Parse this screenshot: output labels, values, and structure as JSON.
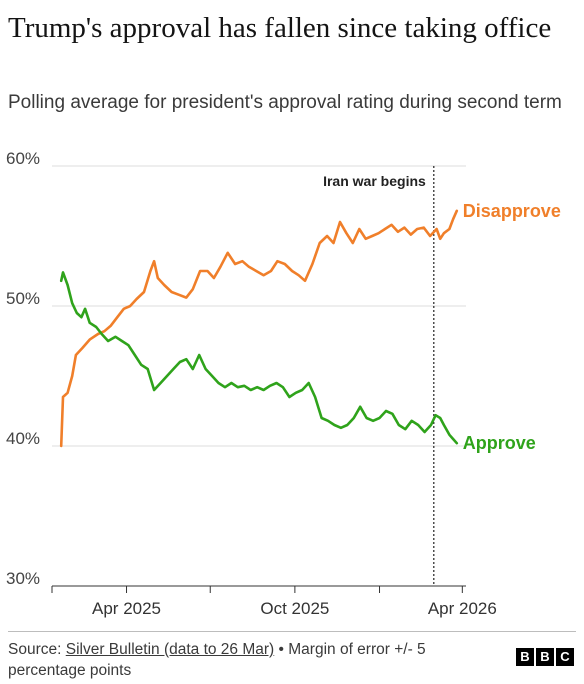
{
  "title": "Trump's approval has fallen since taking office",
  "subtitle": "Polling average for president's approval rating during second term",
  "footer": {
    "source_prefix": "Source: ",
    "source_link": "Silver Bulletin (data to 26 Mar)",
    "source_suffix": " • Margin of error +/- 5 percentage points",
    "logo_letters": [
      "B",
      "B",
      "C"
    ]
  },
  "colors": {
    "disapprove": "#f07f2a",
    "approve": "#2fa31b",
    "grid": "#dcdcdc",
    "axis": "#333333"
  },
  "chart_data": {
    "type": "line",
    "ylim": [
      30,
      60
    ],
    "y_ticks": [
      30,
      40,
      50,
      60
    ],
    "y_tick_labels": [
      "30%",
      "40%",
      "50%",
      "60%"
    ],
    "x_ticks": [
      "2025-04-01",
      "2025-10-01",
      "2026-04-01"
    ],
    "x_tick_labels": [
      "Apr 2025",
      "Oct 2025",
      "Apr 2026"
    ],
    "xlim": [
      "2025-01-10",
      "2026-04-05"
    ],
    "grid": true,
    "annotations": [
      {
        "date": "2026-03-01",
        "label": "Iran war begins"
      }
    ],
    "series": [
      {
        "name": "Disapprove",
        "color": "#f07f2a",
        "points": [
          [
            "2025-01-20",
            40
          ],
          [
            "2025-01-22",
            43.5
          ],
          [
            "2025-01-27",
            43.8
          ],
          [
            "2025-02-01",
            45
          ],
          [
            "2025-02-05",
            46.5
          ],
          [
            "2025-02-12",
            47
          ],
          [
            "2025-02-20",
            47.6
          ],
          [
            "2025-03-01",
            48
          ],
          [
            "2025-03-08",
            48.2
          ],
          [
            "2025-03-15",
            48.6
          ],
          [
            "2025-03-22",
            49.2
          ],
          [
            "2025-03-29",
            49.8
          ],
          [
            "2025-04-05",
            50
          ],
          [
            "2025-04-12",
            50.5
          ],
          [
            "2025-04-20",
            51
          ],
          [
            "2025-04-27",
            52.5
          ],
          [
            "2025-05-01",
            53.2
          ],
          [
            "2025-05-05",
            52
          ],
          [
            "2025-05-12",
            51.5
          ],
          [
            "2025-05-20",
            51
          ],
          [
            "2025-05-28",
            50.8
          ],
          [
            "2025-06-05",
            50.6
          ],
          [
            "2025-06-12",
            51.2
          ],
          [
            "2025-06-20",
            52.5
          ],
          [
            "2025-06-28",
            52.5
          ],
          [
            "2025-07-05",
            52
          ],
          [
            "2025-07-12",
            52.8
          ],
          [
            "2025-07-20",
            53.8
          ],
          [
            "2025-07-28",
            53
          ],
          [
            "2025-08-05",
            53.2
          ],
          [
            "2025-08-12",
            52.8
          ],
          [
            "2025-08-20",
            52.5
          ],
          [
            "2025-08-28",
            52.2
          ],
          [
            "2025-09-05",
            52.5
          ],
          [
            "2025-09-12",
            53.2
          ],
          [
            "2025-09-20",
            53
          ],
          [
            "2025-09-28",
            52.5
          ],
          [
            "2025-10-05",
            52.2
          ],
          [
            "2025-10-12",
            51.8
          ],
          [
            "2025-10-20",
            53
          ],
          [
            "2025-10-28",
            54.5
          ],
          [
            "2025-11-05",
            55
          ],
          [
            "2025-11-12",
            54.5
          ],
          [
            "2025-11-19",
            56
          ],
          [
            "2025-11-26",
            55.2
          ],
          [
            "2025-12-03",
            54.5
          ],
          [
            "2025-12-10",
            55.5
          ],
          [
            "2025-12-17",
            54.8
          ],
          [
            "2025-12-24",
            55
          ],
          [
            "2025-12-31",
            55.2
          ],
          [
            "2026-01-07",
            55.5
          ],
          [
            "2026-01-14",
            55.8
          ],
          [
            "2026-01-21",
            55.3
          ],
          [
            "2026-01-28",
            55.6
          ],
          [
            "2026-02-04",
            55.1
          ],
          [
            "2026-02-11",
            55.5
          ],
          [
            "2026-02-18",
            55.6
          ],
          [
            "2026-02-25",
            55
          ],
          [
            "2026-03-04",
            55.5
          ],
          [
            "2026-03-08",
            54.8
          ],
          [
            "2026-03-12",
            55.2
          ],
          [
            "2026-03-18",
            55.5
          ],
          [
            "2026-03-22",
            56.2
          ],
          [
            "2026-03-26",
            56.8
          ]
        ]
      },
      {
        "name": "Approve",
        "color": "#2fa31b",
        "points": [
          [
            "2025-01-20",
            51.8
          ],
          [
            "2025-01-22",
            52.4
          ],
          [
            "2025-01-27",
            51.5
          ],
          [
            "2025-02-01",
            50.2
          ],
          [
            "2025-02-06",
            49.5
          ],
          [
            "2025-02-11",
            49.2
          ],
          [
            "2025-02-15",
            49.8
          ],
          [
            "2025-02-20",
            48.8
          ],
          [
            "2025-02-27",
            48.5
          ],
          [
            "2025-03-05",
            48
          ],
          [
            "2025-03-12",
            47.5
          ],
          [
            "2025-03-20",
            47.8
          ],
          [
            "2025-03-27",
            47.5
          ],
          [
            "2025-04-03",
            47.2
          ],
          [
            "2025-04-10",
            46.5
          ],
          [
            "2025-04-17",
            45.8
          ],
          [
            "2025-04-24",
            45.5
          ],
          [
            "2025-05-01",
            44
          ],
          [
            "2025-05-08",
            44.5
          ],
          [
            "2025-05-15",
            45
          ],
          [
            "2025-05-22",
            45.5
          ],
          [
            "2025-05-29",
            46
          ],
          [
            "2025-06-05",
            46.2
          ],
          [
            "2025-06-12",
            45.5
          ],
          [
            "2025-06-19",
            46.5
          ],
          [
            "2025-06-26",
            45.5
          ],
          [
            "2025-07-03",
            45
          ],
          [
            "2025-07-10",
            44.5
          ],
          [
            "2025-07-17",
            44.2
          ],
          [
            "2025-07-24",
            44.5
          ],
          [
            "2025-07-31",
            44.2
          ],
          [
            "2025-08-07",
            44.3
          ],
          [
            "2025-08-14",
            44
          ],
          [
            "2025-08-21",
            44.2
          ],
          [
            "2025-08-28",
            44
          ],
          [
            "2025-09-04",
            44.3
          ],
          [
            "2025-09-11",
            44.5
          ],
          [
            "2025-09-18",
            44.2
          ],
          [
            "2025-09-25",
            43.5
          ],
          [
            "2025-10-02",
            43.8
          ],
          [
            "2025-10-09",
            44
          ],
          [
            "2025-10-16",
            44.5
          ],
          [
            "2025-10-23",
            43.5
          ],
          [
            "2025-10-30",
            42
          ],
          [
            "2025-11-06",
            41.8
          ],
          [
            "2025-11-13",
            41.5
          ],
          [
            "2025-11-20",
            41.3
          ],
          [
            "2025-11-27",
            41.5
          ],
          [
            "2025-12-04",
            42
          ],
          [
            "2025-12-11",
            42.8
          ],
          [
            "2025-12-18",
            42
          ],
          [
            "2025-12-25",
            41.8
          ],
          [
            "2026-01-01",
            42
          ],
          [
            "2026-01-08",
            42.5
          ],
          [
            "2026-01-15",
            42.3
          ],
          [
            "2026-01-22",
            41.5
          ],
          [
            "2026-01-29",
            41.2
          ],
          [
            "2026-02-05",
            41.8
          ],
          [
            "2026-02-12",
            41.5
          ],
          [
            "2026-02-19",
            41
          ],
          [
            "2026-02-26",
            41.5
          ],
          [
            "2026-03-03",
            42.2
          ],
          [
            "2026-03-08",
            42
          ],
          [
            "2026-03-12",
            41.5
          ],
          [
            "2026-03-18",
            40.8
          ],
          [
            "2026-03-22",
            40.5
          ],
          [
            "2026-03-26",
            40.2
          ]
        ]
      }
    ]
  }
}
